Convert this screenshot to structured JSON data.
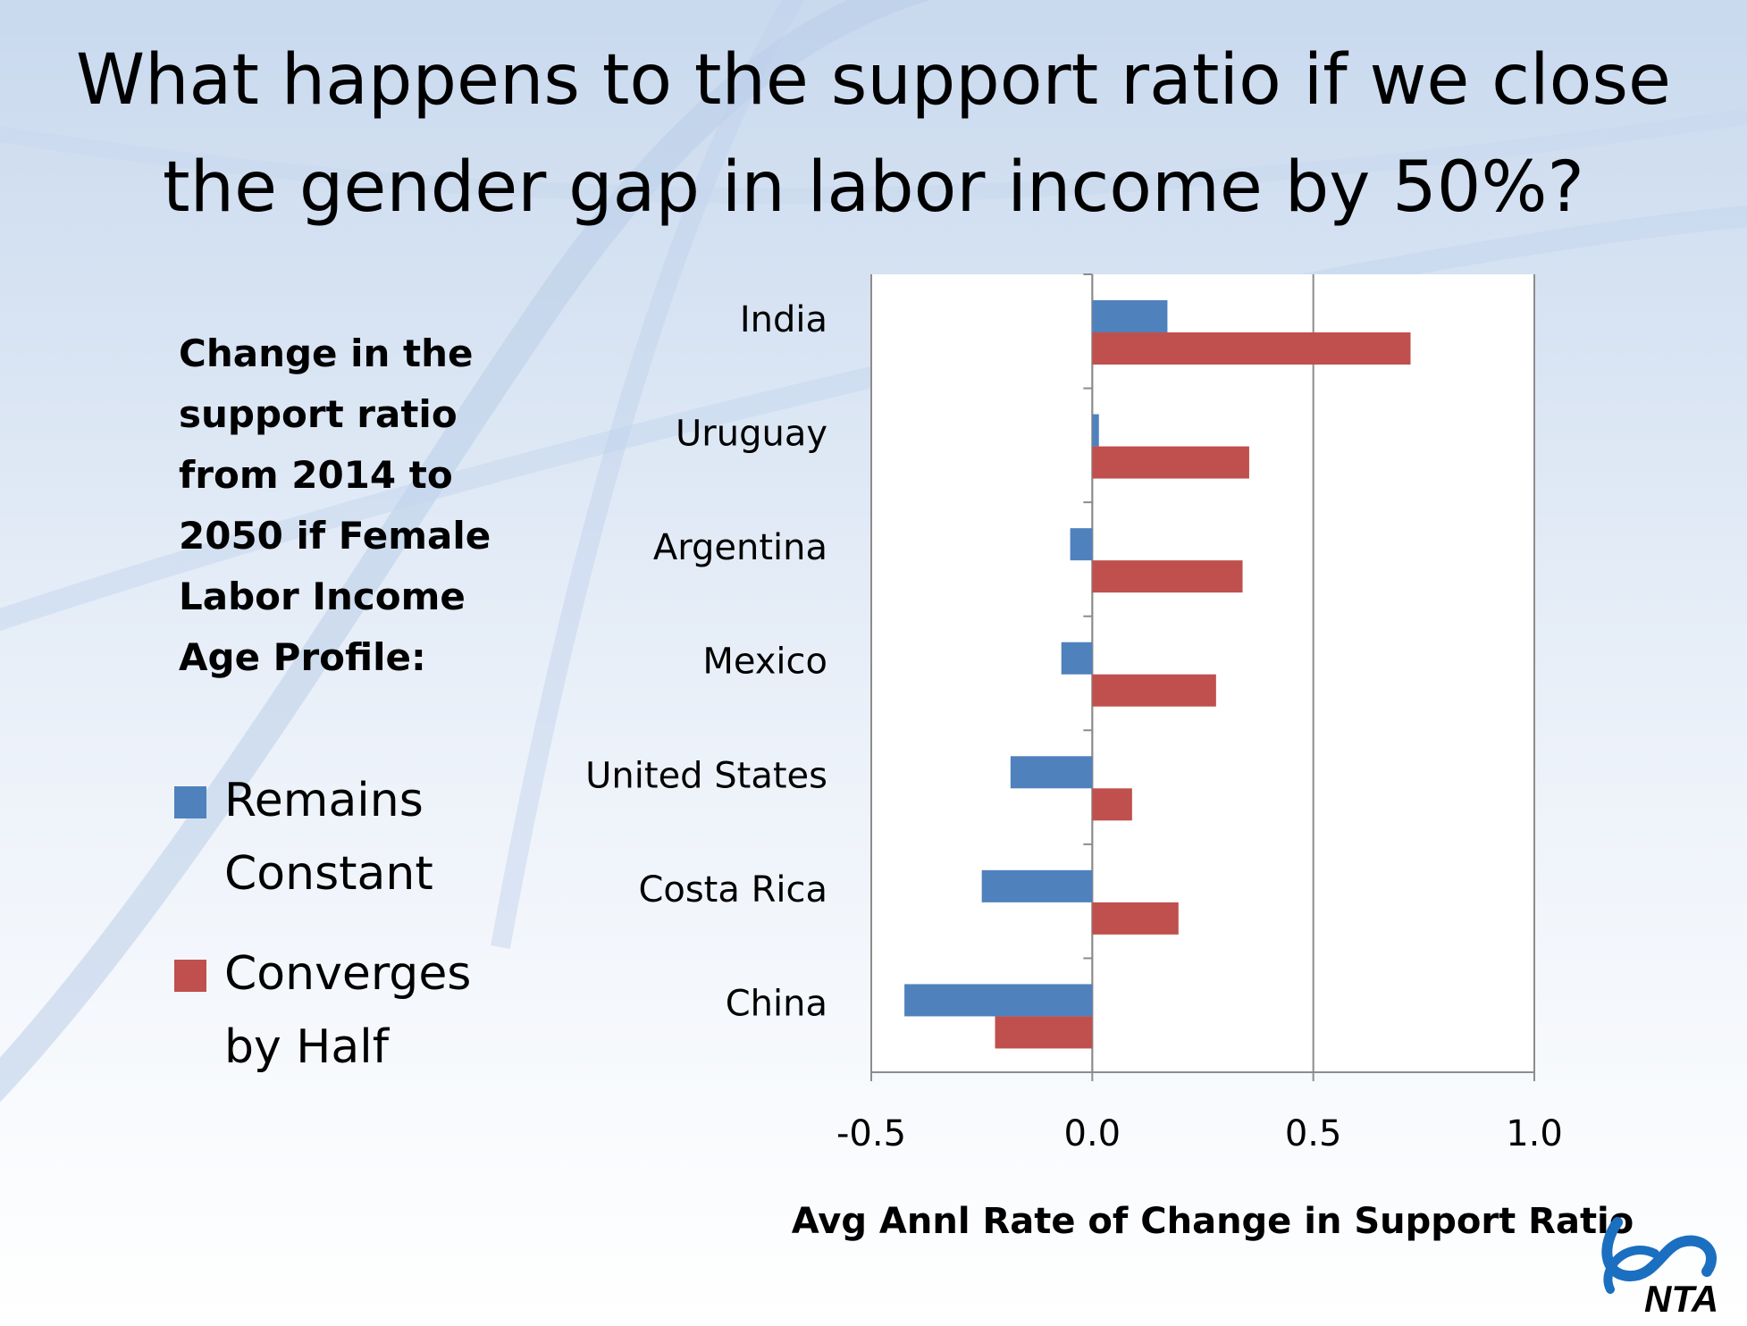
{
  "slide": {
    "title_lines": [
      "What happens to the support ratio if we close",
      "the gender gap in labor income by 50%?"
    ],
    "side_heading_lines": [
      "Change in the",
      "support ratio",
      "from 2014 to",
      "2050 if Female",
      "Labor Income",
      "Age Profile:"
    ],
    "logo_text": "NTA"
  },
  "legend": [
    {
      "lines": [
        "Remains",
        "Constant"
      ],
      "color": "#4f81bd"
    },
    {
      "lines": [
        "Converges",
        "by Half"
      ],
      "color": "#c0504d"
    }
  ],
  "chart_data": {
    "type": "bar",
    "orientation": "horizontal",
    "categories": [
      "India",
      "Uruguay",
      "Argentina",
      "Mexico",
      "United States",
      "Costa Rica",
      "China"
    ],
    "series": [
      {
        "name": "Remains Constant",
        "color": "#4f81bd",
        "values": [
          0.17,
          0.015,
          -0.05,
          -0.07,
          -0.185,
          -0.25,
          -0.425
        ]
      },
      {
        "name": "Converges by Half",
        "color": "#c0504d",
        "values": [
          0.72,
          0.355,
          0.34,
          0.28,
          0.09,
          0.195,
          -0.22
        ]
      }
    ],
    "xlabel": "Avg Annl Rate of Change in Support Ratio",
    "xlim": [
      -0.5,
      1.0
    ],
    "xticks": [
      "-0.5",
      "0.0",
      "0.5",
      "1.0"
    ],
    "xtick_values": [
      -0.5,
      0.0,
      0.5,
      1.0
    ],
    "vertical_gridlines": true,
    "legend_position": "left"
  }
}
